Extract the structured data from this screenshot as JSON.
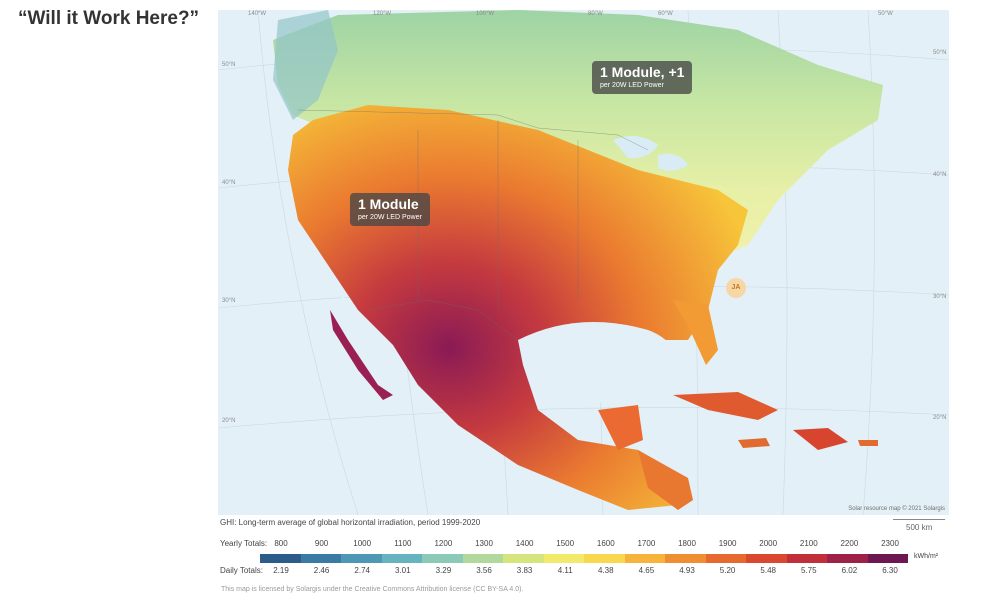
{
  "slide": {
    "title": "“Will it Work Here?”"
  },
  "map": {
    "coordinate_labels": [
      "140°W",
      "120°W",
      "100°W",
      "80°W",
      "60°W",
      "50°W",
      "50°N",
      "40°N",
      "30°N",
      "20°N",
      "50°N",
      "40°N",
      "30°N",
      "20°N"
    ],
    "callouts": [
      {
        "title": "1 Module, +1",
        "subtitle": "per 20W LED Power"
      },
      {
        "title": "1 Module",
        "subtitle": "per 20W LED Power"
      }
    ],
    "marker": "JA",
    "credit": "Solar resource map © 2021 Solargis"
  },
  "legend": {
    "caption": "GHI: Long-term average of global horizontal irradiation, period 1999-2020",
    "scale": "500 km",
    "yearly_label": "Yearly Totals:",
    "yearly": [
      "800",
      "900",
      "1000",
      "1100",
      "1200",
      "1300",
      "1400",
      "1500",
      "1600",
      "1700",
      "1800",
      "1900",
      "2000",
      "2100",
      "2200",
      "2300"
    ],
    "daily_label": "Daily Totals:",
    "daily": [
      "2.19",
      "2.46",
      "2.74",
      "3.01",
      "3.29",
      "3.56",
      "3.83",
      "4.11",
      "4.38",
      "4.65",
      "4.93",
      "5.20",
      "5.48",
      "5.75",
      "6.02",
      "6.30"
    ],
    "unit": "kWh/m²",
    "colors": [
      "#2d5b8a",
      "#3a7aa3",
      "#4c98b5",
      "#66b4c0",
      "#8ccab8",
      "#b2d89b",
      "#d7e57e",
      "#f1ea6a",
      "#f7d84f",
      "#f6b43c",
      "#f08e33",
      "#e6692f",
      "#d9482f",
      "#c1303a",
      "#9e2148",
      "#6e1852"
    ]
  },
  "license": "This map is licensed by Solargis under the Creative Commons Attribution license (CC BY-SA 4.0)."
}
